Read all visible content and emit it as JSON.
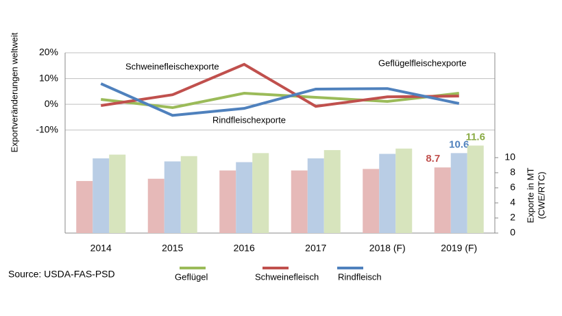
{
  "chart_data": {
    "type": "combo",
    "categories": [
      "2014",
      "2015",
      "2016",
      "2017",
      "2018 (F)",
      "2019 (F)"
    ],
    "ylabel": "Exportveränderungen weltweit",
    "y2label": [
      "Exporte in MT",
      "(CWE/RTC)"
    ],
    "ylim": [
      -50,
      20
    ],
    "yticks": [
      {
        "value": 20,
        "label": "20%"
      },
      {
        "value": 10,
        "label": "10%"
      },
      {
        "value": 0,
        "label": "0%"
      },
      {
        "value": -10,
        "label": "-10%"
      }
    ],
    "y2lim": [
      0,
      23.9
    ],
    "y2ticks": [
      0,
      2,
      4,
      6,
      8,
      10
    ],
    "grid": true,
    "series": [
      {
        "name": "Geflügel",
        "color": "#9bbb59",
        "values": [
          1.9,
          -1.3,
          4.3,
          2.7,
          1.1,
          4.3
        ]
      },
      {
        "name": "Schweinefleisch",
        "color": "#c0504d",
        "values": [
          -0.5,
          3.7,
          15.5,
          -0.8,
          2.9,
          3.2
        ]
      },
      {
        "name": "Rindfleisch",
        "color": "#4f81bd",
        "values": [
          8,
          -4.3,
          -1.6,
          5.9,
          6.1,
          0.3
        ]
      }
    ],
    "bar_series": [
      {
        "color": "#e6b9b8",
        "label_color": "#c0504d",
        "axis": "y2",
        "values": [
          6.9,
          7.2,
          8.3,
          8.3,
          8.5,
          8.7
        ],
        "value_labels": [
          null,
          null,
          null,
          null,
          null,
          "8.7"
        ]
      },
      {
        "color": "#b9cde5",
        "label_color": "#4f81bd",
        "axis": "y2",
        "values": [
          9.9,
          9.5,
          9.4,
          9.9,
          10.5,
          10.6
        ],
        "value_labels": [
          null,
          null,
          null,
          null,
          null,
          "10.6"
        ]
      },
      {
        "color": "#d7e4bd",
        "label_color": "#8aab45",
        "axis": "y2",
        "values": [
          10.4,
          10.2,
          10.6,
          11.0,
          11.2,
          11.6
        ],
        "value_labels": [
          null,
          null,
          null,
          null,
          null,
          "11.6"
        ]
      }
    ],
    "annotations": [
      "Schweinefleischexporte",
      "Geflügelfleischexporte",
      "Rindfleischexporte"
    ],
    "source": "Source: USDA-FAS-PSD"
  }
}
